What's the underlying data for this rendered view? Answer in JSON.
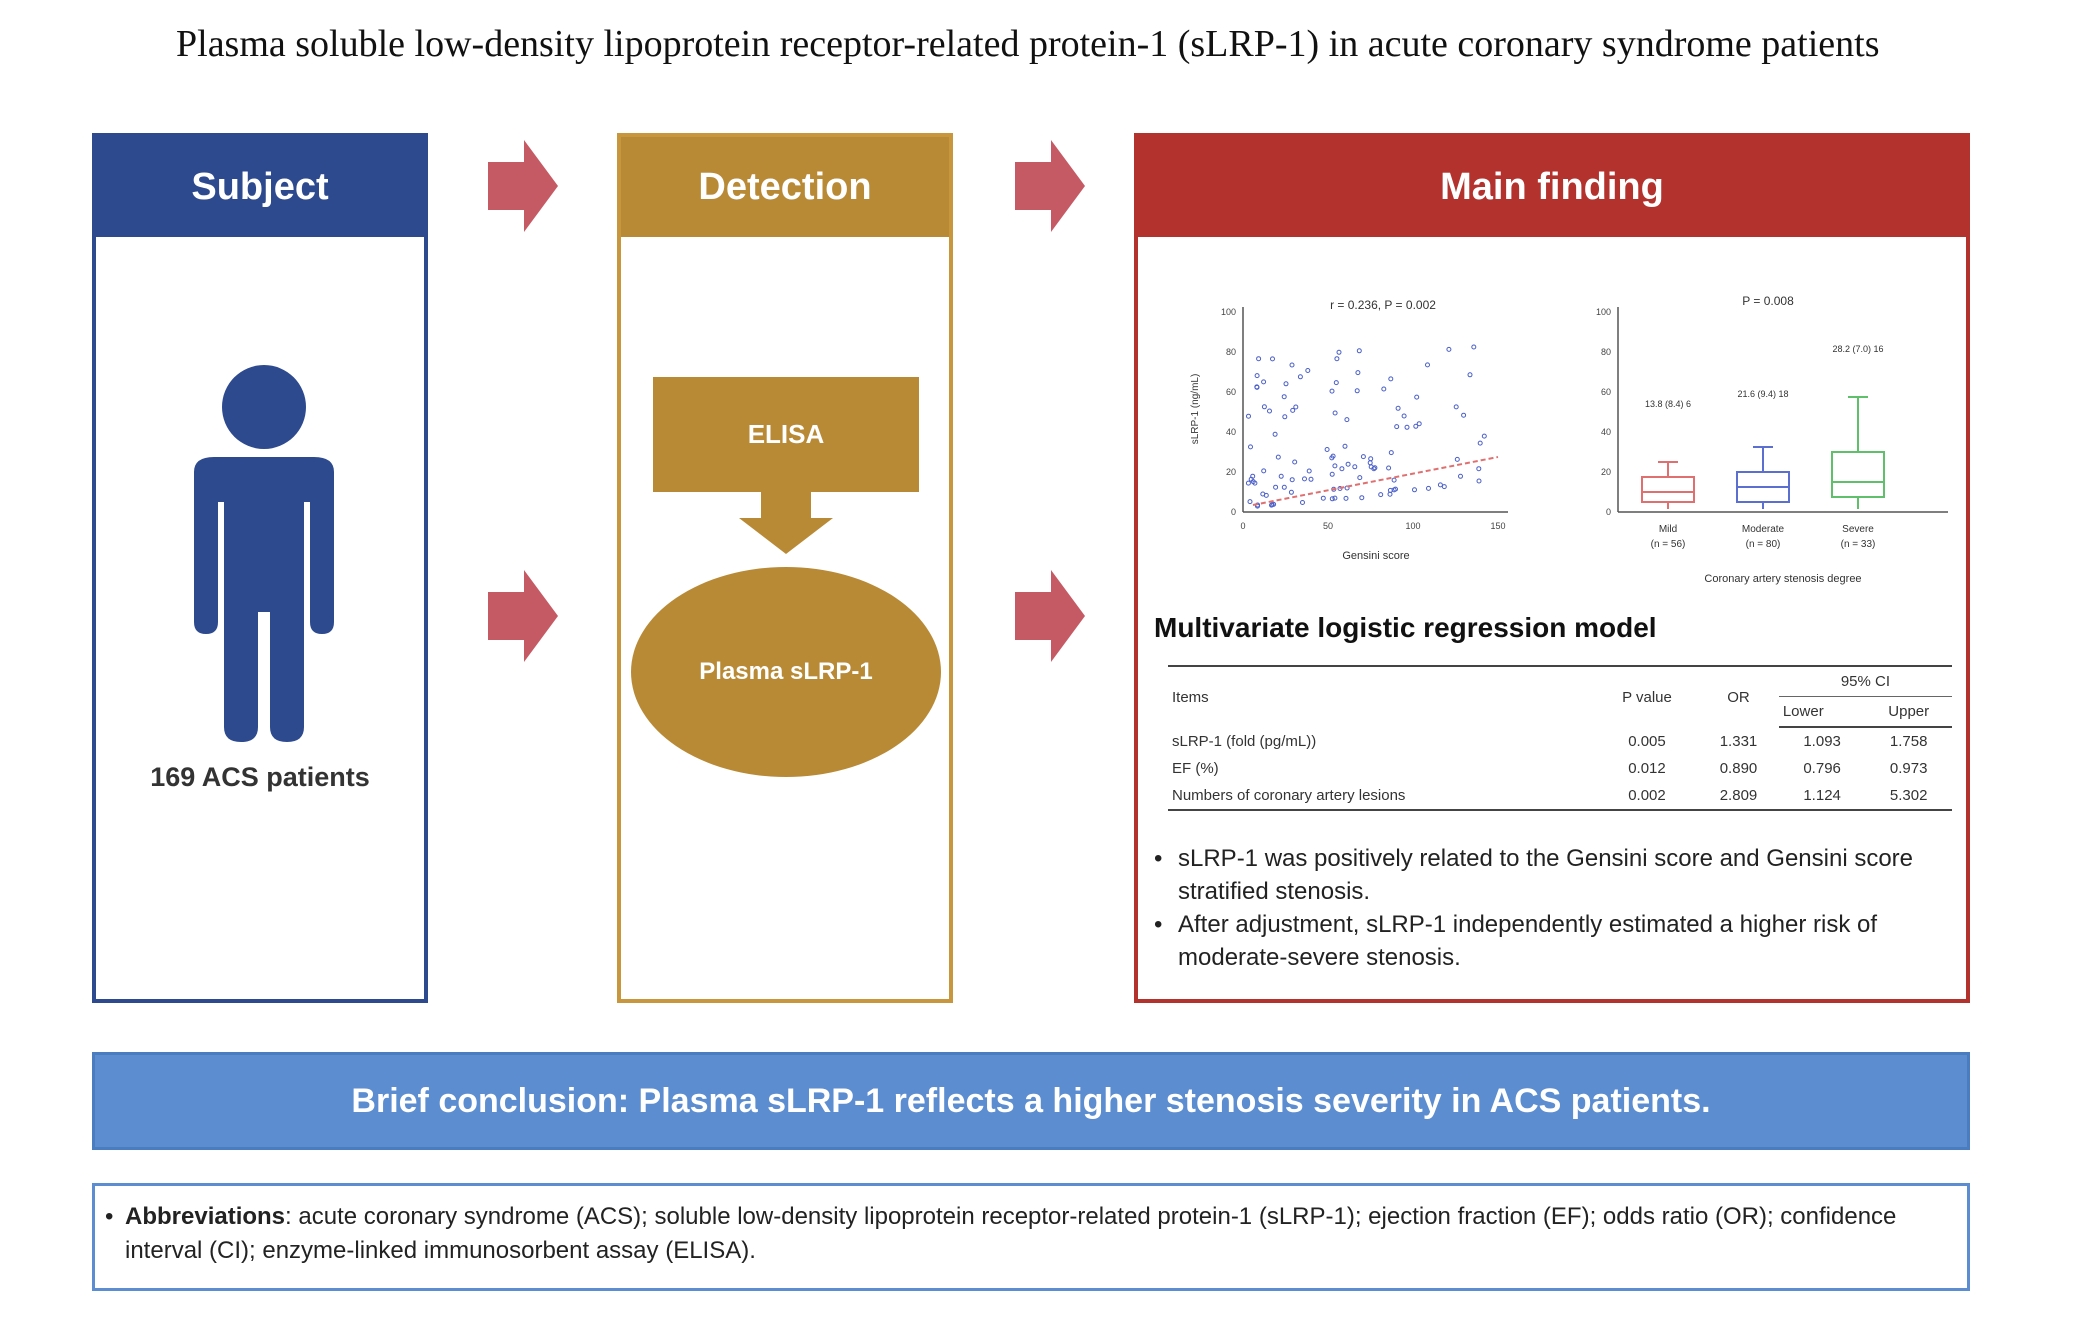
{
  "title": "Plasma soluble low-density lipoprotein receptor-related protein-1 (sLRP-1) in acute coronary syndrome patients",
  "subject": {
    "header": "Subject",
    "caption": "169 ACS patients"
  },
  "detection": {
    "header": "Detection",
    "method": "ELISA",
    "target": "Plasma sLRP-1"
  },
  "finding": {
    "header": "Main finding",
    "scatter": {
      "stat": "r = 0.236, P = 0.002",
      "xlabel": "Gensini score",
      "ylabel": "sLRP-1 (ng/mL)",
      "xticks": [
        "0",
        "50",
        "100",
        "150"
      ],
      "yticks": [
        "0",
        "20",
        "40",
        "60",
        "80",
        "100"
      ]
    },
    "boxplot": {
      "stat": "P = 0.008",
      "xlabel": "Coronary artery stenosis degree",
      "groups": [
        {
          "name": "Mild",
          "n": "(n = 56)",
          "label": "13.8 (8.4) 6"
        },
        {
          "name": "Moderate",
          "n": "(n = 80)",
          "label": "21.6 (9.4) 18"
        },
        {
          "name": "Severe",
          "n": "(n = 33)",
          "label": "28.2 (7.0) 16"
        }
      ],
      "yticks": [
        "0",
        "20",
        "40",
        "60",
        "80",
        "100"
      ]
    },
    "model_title": "Multivariate logistic regression model",
    "table": {
      "columns": [
        "Items",
        "P value",
        "OR",
        "Lower",
        "Upper"
      ],
      "ci_label": "95% CI",
      "rows": [
        [
          "sLRP-1 (fold (pg/mL))",
          "0.005",
          "1.331",
          "1.093",
          "1.758"
        ],
        [
          "EF (%)",
          "0.012",
          "0.890",
          "0.796",
          "0.973"
        ],
        [
          "Numbers of coronary artery lesions",
          "0.002",
          "2.809",
          "1.124",
          "5.302"
        ]
      ]
    },
    "bullets": [
      "sLRP-1 was positively related to the Gensini score and Gensini score stratified stenosis.",
      "After adjustment, sLRP-1 independently estimated a higher risk of moderate-severe stenosis."
    ]
  },
  "conclusion": "Brief conclusion: Plasma sLRP-1 reflects a higher stenosis severity in ACS patients.",
  "abbreviations": {
    "label": "Abbreviations",
    "text": ": acute coronary syndrome (ACS); soluble low-density lipoprotein receptor-related protein-1 (sLRP-1); ejection fraction (EF); odds ratio (OR); confidence interval (CI); enzyme-linked immunosorbent assay (ELISA)."
  },
  "colors": {
    "subject": "#2d4a8f",
    "detection": "#b98a36",
    "finding": "#b3322e",
    "arrow": "#c65a64",
    "conclusion": "#5b8dd0",
    "mild": "#e07070",
    "moderate": "#5a6fd0",
    "severe": "#5fbf6a"
  }
}
